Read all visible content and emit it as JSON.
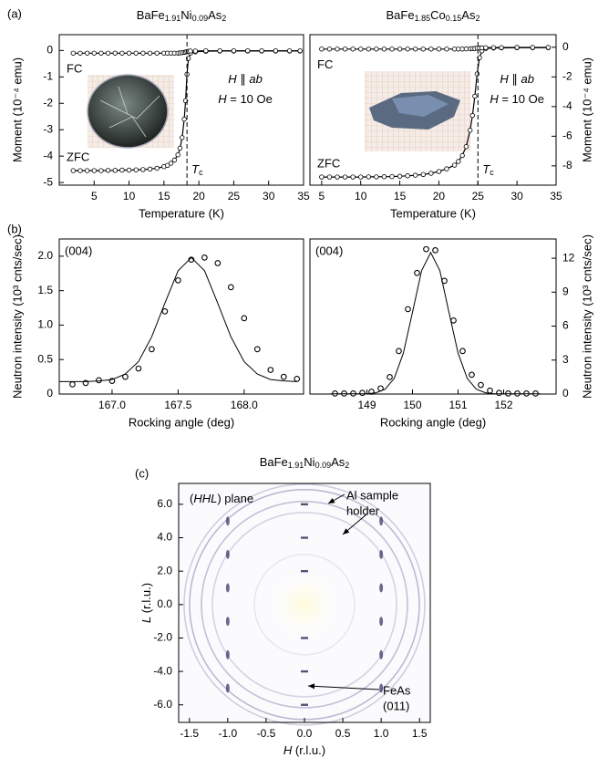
{
  "panels": [
    "(a)",
    "(b)",
    "(c)"
  ],
  "chart_data": [
    {
      "type": "line",
      "title": "BaFe1.91Ni0.09As2",
      "xlabel": "Temperature (K)",
      "ylabel": "Moment (10⁻⁴ emu)",
      "xlim": [
        0,
        35
      ],
      "ylim": [
        -5.1,
        0.6
      ],
      "xticks": [
        5,
        10,
        15,
        20,
        25,
        30,
        35
      ],
      "yticks": [
        0,
        -1,
        -2,
        -3,
        -4,
        -5
      ],
      "y_side": "left",
      "x": [
        2,
        3,
        4,
        5,
        6,
        7,
        8,
        9,
        10,
        11,
        12,
        13,
        14,
        15,
        15.5,
        16,
        16.5,
        17,
        17.3,
        17.6,
        17.9,
        18.1,
        18.3,
        18.5,
        18.8,
        19.5,
        21,
        23,
        25,
        27,
        29,
        31,
        33,
        34.5
      ],
      "series": [
        {
          "name": "ZFC",
          "color": "#000000",
          "values": [
            -4.55,
            -4.55,
            -4.55,
            -4.55,
            -4.55,
            -4.54,
            -4.54,
            -4.53,
            -4.53,
            -4.52,
            -4.51,
            -4.49,
            -4.46,
            -4.4,
            -4.35,
            -4.27,
            -4.15,
            -3.95,
            -3.7,
            -3.3,
            -2.6,
            -1.9,
            -0.9,
            -0.3,
            -0.1,
            -0.05,
            -0.03,
            -0.02,
            -0.02,
            -0.02,
            -0.02,
            -0.02,
            -0.02,
            -0.02
          ]
        },
        {
          "name": "FC",
          "color": "#000000",
          "values": [
            -0.1,
            -0.1,
            -0.1,
            -0.1,
            -0.1,
            -0.1,
            -0.1,
            -0.1,
            -0.1,
            -0.1,
            -0.1,
            -0.1,
            -0.1,
            -0.1,
            -0.1,
            -0.1,
            -0.1,
            -0.1,
            -0.09,
            -0.08,
            -0.07,
            -0.06,
            -0.04,
            -0.03,
            -0.02,
            -0.02,
            -0.01,
            -0.01,
            -0.01,
            -0.01,
            -0.01,
            -0.01,
            -0.01,
            -0.01
          ]
        }
      ],
      "vline": 18.3,
      "vline_label": "Tc",
      "annotations": [
        "H ∥ ab",
        "H = 10 Oe"
      ]
    },
    {
      "type": "line",
      "title": "BaFe1.85Co0.15As2",
      "xlabel": "Temperature (K)",
      "ylabel": "Moment (10⁻⁴ emu)",
      "xlim": [
        3.5,
        35
      ],
      "ylim": [
        -9.3,
        0.85
      ],
      "xticks": [
        5,
        10,
        15,
        20,
        25,
        30,
        35
      ],
      "yticks": [
        0,
        -2,
        -4,
        -6,
        -8
      ],
      "y_side": "right",
      "x": [
        5,
        6,
        7,
        8,
        9,
        10,
        11,
        12,
        13,
        14,
        15,
        16,
        17,
        18,
        19,
        20,
        21,
        22,
        22.5,
        23,
        23.5,
        24,
        24.3,
        24.6,
        24.9,
        25.2,
        25.5,
        26,
        27,
        28,
        30,
        32,
        34
      ],
      "series": [
        {
          "name": "ZFC",
          "color": "#000000",
          "values": [
            -8.75,
            -8.75,
            -8.75,
            -8.75,
            -8.75,
            -8.75,
            -8.74,
            -8.74,
            -8.73,
            -8.72,
            -8.7,
            -8.67,
            -8.63,
            -8.58,
            -8.5,
            -8.38,
            -8.2,
            -7.95,
            -7.7,
            -7.3,
            -6.7,
            -5.6,
            -4.6,
            -3.3,
            -1.8,
            -0.7,
            -0.25,
            -0.08,
            -0.05,
            -0.04,
            -0.03,
            -0.03,
            -0.03
          ]
        },
        {
          "name": "FC",
          "color": "#000000",
          "values": [
            -0.12,
            -0.12,
            -0.12,
            -0.12,
            -0.12,
            -0.12,
            -0.12,
            -0.12,
            -0.12,
            -0.12,
            -0.12,
            -0.12,
            -0.12,
            -0.12,
            -0.12,
            -0.12,
            -0.12,
            -0.12,
            -0.12,
            -0.12,
            -0.11,
            -0.1,
            -0.09,
            -0.08,
            -0.06,
            -0.05,
            -0.04,
            -0.03,
            -0.02,
            -0.02,
            -0.01,
            -0.01,
            -0.01
          ]
        }
      ],
      "vline": 25.0,
      "vline_label": "Tc",
      "annotations": [
        "H ∥ ab",
        "H = 10 Oe"
      ]
    },
    {
      "type": "scatter",
      "xlabel": "Rocking angle (deg)",
      "ylabel": "Neutron intensity (10³ cnts/sec)",
      "xlim": [
        166.6,
        168.45
      ],
      "ylim": [
        0,
        2.25
      ],
      "xticks": [
        {
          "value": 167,
          "label": "167.0"
        },
        167.5,
        {
          "value": 168,
          "label": "168.0"
        }
      ],
      "yticks": [
        0,
        0.5,
        {
          "value": 1,
          "label": "1.0"
        },
        1.5,
        {
          "value": 2,
          "label": "2.0"
        }
      ],
      "y_side": "left",
      "annotations": [
        "(004)"
      ],
      "series": [
        {
          "mode": "markers",
          "color": "#000000",
          "x": [
            166.7,
            166.8,
            166.9,
            167.0,
            167.1,
            167.2,
            167.3,
            167.4,
            167.5,
            167.6,
            167.7,
            167.8,
            167.9,
            168.0,
            168.1,
            168.2,
            168.3,
            168.4
          ],
          "values": [
            0.14,
            0.16,
            0.2,
            0.19,
            0.25,
            0.37,
            0.65,
            1.2,
            1.65,
            1.95,
            1.98,
            1.9,
            1.55,
            1.1,
            0.65,
            0.35,
            0.25,
            0.22
          ]
        },
        {
          "mode": "line",
          "color": "#000000",
          "x": [
            166.6,
            166.7,
            166.8,
            166.9,
            167.0,
            167.1,
            167.2,
            167.3,
            167.4,
            167.5,
            167.6,
            167.7,
            167.8,
            167.9,
            168.0,
            168.1,
            168.2,
            168.3,
            168.4
          ],
          "values": [
            0.18,
            0.18,
            0.18,
            0.19,
            0.21,
            0.29,
            0.47,
            0.83,
            1.32,
            1.79,
            1.98,
            1.79,
            1.32,
            0.83,
            0.47,
            0.29,
            0.21,
            0.19,
            0.18
          ]
        }
      ]
    },
    {
      "type": "scatter",
      "xlabel": "Rocking angle (deg)",
      "ylabel": "Neutron intensity (10³ cnts/sec)",
      "xlim": [
        147.75,
        153.15
      ],
      "ylim": [
        0,
        13.7
      ],
      "xticks": [
        149,
        150,
        151,
        152
      ],
      "yticks": [
        0,
        3,
        6,
        9,
        12
      ],
      "y_side": "right",
      "annotations": [
        "(004)"
      ],
      "series": [
        {
          "mode": "markers",
          "color": "#000000",
          "x": [
            148.3,
            148.5,
            148.7,
            148.9,
            149.1,
            149.3,
            149.5,
            149.7,
            149.9,
            150.1,
            150.3,
            150.5,
            150.7,
            150.9,
            151.1,
            151.3,
            151.5,
            151.7,
            151.9,
            152.1,
            152.3,
            152.5,
            152.7
          ],
          "values": [
            0.05,
            0.05,
            0.05,
            0.1,
            0.2,
            0.5,
            1.5,
            3.8,
            7.5,
            10.7,
            12.8,
            12.7,
            10,
            6.5,
            3.8,
            1.7,
            0.8,
            0.3,
            0.1,
            0.05,
            0.05,
            0.05,
            0.05
          ]
        },
        {
          "mode": "line",
          "color": "#000000",
          "x": [
            148.2,
            148.4,
            148.6,
            148.8,
            149.0,
            149.2,
            149.4,
            149.6,
            149.8,
            150.0,
            150.2,
            150.4,
            150.6,
            150.8,
            151.0,
            151.2,
            151.4,
            151.6,
            151.8,
            152.0,
            152.2,
            152.4,
            152.6,
            152.8
          ],
          "values": [
            0.02,
            0.02,
            0.02,
            0.02,
            0.02,
            0.11,
            0.43,
            1.39,
            3.62,
            7.22,
            10.9,
            12.5,
            10.9,
            7.22,
            3.62,
            1.39,
            0.43,
            0.11,
            0.02,
            0.02,
            0.02,
            0.02,
            0.02,
            0.02
          ]
        }
      ]
    },
    {
      "type": "image",
      "title": "BaFe1.91Ni0.09As2",
      "xlabel": "H (r.l.u.)",
      "ylabel": "L (r.l.u.)",
      "xlim": [
        -1.64,
        1.64
      ],
      "ylim": [
        -7.05,
        7.25
      ],
      "xticks": [
        -1.5,
        {
          "value": -1,
          "label": "-1.0"
        },
        -0.5,
        {
          "value": 0,
          "label": "0.0"
        },
        0.5,
        {
          "value": 1,
          "label": "1.0"
        },
        1.5
      ],
      "yticks": [
        {
          "value": 6,
          "label": "6.0"
        },
        {
          "value": 4,
          "label": "4.0"
        },
        {
          "value": 2,
          "label": "2.0"
        },
        {
          "value": 0,
          "label": "0.0"
        },
        {
          "value": -2,
          "label": "-2.0"
        },
        {
          "value": -4,
          "label": "-4.0"
        },
        {
          "value": -6,
          "label": "-6.0"
        }
      ],
      "y_side": "left",
      "annotations": [
        [
          "(HHL) plane"
        ],
        [
          "Al sample",
          "holder"
        ],
        [
          "FeAs",
          "(011)"
        ]
      ]
    }
  ]
}
